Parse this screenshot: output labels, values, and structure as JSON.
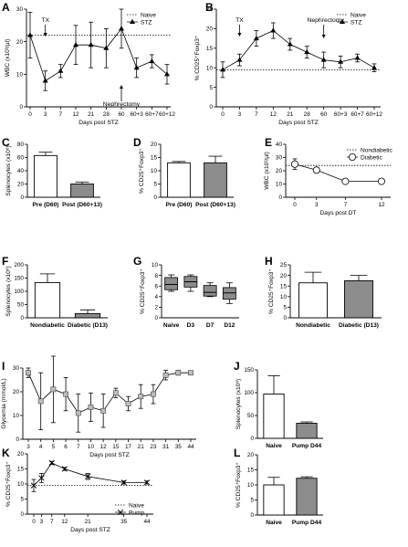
{
  "figure_labels": {
    "A": "A",
    "B": "B",
    "C": "C",
    "D": "D",
    "E": "E",
    "F": "F",
    "G": "G",
    "H": "H",
    "I": "I",
    "J": "J",
    "K": "K",
    "L": "L"
  },
  "chart_data": [
    {
      "id": "A",
      "type": "line",
      "x": [
        "0",
        "3",
        "7",
        "12",
        "21",
        "28",
        "60",
        "60+3",
        "60+7",
        "60+12"
      ],
      "series": [
        {
          "name": "STZ",
          "values": [
            22,
            8,
            11,
            19,
            19,
            18,
            24,
            12,
            14,
            10
          ],
          "err": [
            7,
            3,
            2,
            6,
            7,
            6,
            6,
            3,
            2,
            3
          ]
        }
      ],
      "reference": {
        "name": "Naive",
        "value": 22
      },
      "ylim": [
        0,
        30
      ],
      "yticks": [
        0,
        10,
        20,
        30
      ],
      "ylabel": "WBC (x10³/µl)",
      "xlabel": "Days post STZ",
      "annotations": [
        {
          "text": "TX",
          "x": "3"
        },
        {
          "text": "Nephrectomy",
          "x": "60"
        }
      ],
      "legend": "top-right"
    },
    {
      "id": "B",
      "type": "line",
      "x": [
        "0",
        "3",
        "7",
        "12",
        "21",
        "28",
        "60",
        "60+3",
        "60+7",
        "60+12"
      ],
      "series": [
        {
          "name": "STZ",
          "values": [
            9.5,
            12,
            17.5,
            19.5,
            16,
            14,
            12,
            11.5,
            12.5,
            10
          ],
          "err": [
            2,
            1.5,
            2,
            2,
            1.5,
            1.5,
            2,
            1.5,
            1,
            1
          ]
        }
      ],
      "reference": {
        "name": "Naive",
        "value": 9.5
      },
      "ylim": [
        0,
        25
      ],
      "yticks": [
        0,
        5,
        10,
        15,
        20,
        25
      ],
      "ylabel": "% CD25⁺Foxp3⁺",
      "xlabel": "Days post  STZ",
      "annotations": [
        {
          "text": "TX",
          "x": "3"
        },
        {
          "text": "Nephrectomy",
          "x": "60"
        }
      ],
      "legend": "top-right"
    },
    {
      "id": "C",
      "type": "bar",
      "categories": [
        "Pre (D60)",
        "Post (D60+13)"
      ],
      "values": [
        63,
        20
      ],
      "err": [
        5,
        3
      ],
      "colors": [
        "#ffffff",
        "#8c8c8c"
      ],
      "ylim": [
        0,
        80
      ],
      "yticks": [
        0,
        20,
        40,
        60,
        80
      ],
      "ylabel": "Splenocytes (x10⁶)"
    },
    {
      "id": "D",
      "type": "bar",
      "categories": [
        "Pre (D60)",
        "Post (D60+13)"
      ],
      "values": [
        13,
        13
      ],
      "err": [
        0.5,
        2.5
      ],
      "colors": [
        "#ffffff",
        "#8c8c8c"
      ],
      "ylim": [
        0,
        20
      ],
      "yticks": [
        0,
        5,
        10,
        15,
        20
      ],
      "ylabel": "% CD25⁺Foxp3⁺"
    },
    {
      "id": "E",
      "type": "line",
      "x": [
        0,
        3,
        7,
        12
      ],
      "series": [
        {
          "name": "Diabetic",
          "values": [
            25,
            20.5,
            12,
            12
          ],
          "err": [
            4,
            2,
            2,
            2
          ]
        }
      ],
      "reference": {
        "name": "Nondiabetic",
        "value": 24
      },
      "ylim": [
        0,
        40
      ],
      "yticks": [
        0,
        10,
        20,
        30,
        40
      ],
      "ylabel": "WBC (x10³/µl)",
      "xlabel": "Days post DT",
      "legend": "top-right"
    },
    {
      "id": "F",
      "type": "bar",
      "categories": [
        "Nondiabetic",
        "Diabetic (D13)"
      ],
      "values": [
        133,
        16
      ],
      "err": [
        33,
        14
      ],
      "colors": [
        "#ffffff",
        "#8c8c8c"
      ],
      "ylim": [
        0,
        200
      ],
      "yticks": [
        0,
        50,
        100,
        150,
        200
      ],
      "ylabel": "Splenocytes (x10⁶)"
    },
    {
      "id": "G",
      "type": "box",
      "categories": [
        "Naive",
        "D3",
        "D7",
        "D12"
      ],
      "boxes": [
        {
          "min": 5,
          "q1": 5.3,
          "median": 6.3,
          "q3": 7.6,
          "max": 8.1
        },
        {
          "min": 5,
          "q1": 5.8,
          "median": 6.8,
          "q3": 7.8,
          "max": 8.1
        },
        {
          "min": 4,
          "q1": 4.1,
          "median": 4.8,
          "q3": 6.1,
          "max": 6.6
        },
        {
          "min": 2.7,
          "q1": 3.5,
          "median": 4.7,
          "q3": 5.7,
          "max": 6.6
        }
      ],
      "ylim": [
        0,
        10
      ],
      "yticks": [
        0,
        2,
        4,
        6,
        8,
        10
      ],
      "ylabel": "% CD25⁺Foxp3⁺"
    },
    {
      "id": "H",
      "type": "bar",
      "categories": [
        "Nondiabetic",
        "Diabetic (D13)"
      ],
      "values": [
        16.5,
        17.5
      ],
      "err": [
        5,
        2.5
      ],
      "colors": [
        "#ffffff",
        "#8c8c8c"
      ],
      "ylim": [
        0,
        25
      ],
      "yticks": [
        0,
        5,
        10,
        15,
        20,
        25
      ],
      "ylabel": "% CD25⁺Foxp3⁺"
    },
    {
      "id": "I",
      "type": "line",
      "x": [
        "3",
        "4",
        "5",
        "6",
        "7",
        "10",
        "12",
        "15",
        "17",
        "21",
        "23",
        "31",
        "35",
        "44"
      ],
      "series": [
        {
          "name": "Pump",
          "values": [
            28,
            16,
            21,
            19,
            11,
            13.5,
            12,
            19.5,
            15,
            18,
            19,
            27,
            28,
            28
          ],
          "err": [
            2,
            12,
            14,
            7,
            8,
            6,
            7,
            2,
            3,
            5,
            4,
            2,
            1,
            0.5
          ]
        }
      ],
      "ylim": [
        0,
        30
      ],
      "yticks": [
        0,
        10,
        20,
        30
      ],
      "ylabel": "Glycemia (mmol/L)",
      "xlabel": "Days post STZ"
    },
    {
      "id": "J",
      "type": "bar",
      "categories": [
        "Naive",
        "Pump D44"
      ],
      "values": [
        97,
        33
      ],
      "err": [
        40,
        3
      ],
      "colors": [
        "#ffffff",
        "#8c8c8c"
      ],
      "ylim": [
        0,
        150
      ],
      "yticks": [
        0,
        50,
        100,
        150
      ],
      "ylabel": "Splenocytes (x10⁶)"
    },
    {
      "id": "K",
      "type": "line",
      "x": [
        0,
        3,
        7,
        12,
        21,
        35,
        44
      ],
      "series": [
        {
          "name": "Pump",
          "values": [
            9.5,
            12,
            17,
            15,
            12.5,
            10.5,
            10.5
          ],
          "err": [
            2,
            1.5,
            0.5,
            0.5,
            1,
            0.5,
            0.5
          ]
        }
      ],
      "reference": {
        "name": "Naive",
        "value": 9.5
      },
      "ylim": [
        0,
        20
      ],
      "yticks": [
        0,
        5,
        10,
        15,
        20
      ],
      "ylabel": "% CD25⁺Foxp3⁺",
      "xlabel": "Days post STZ",
      "legend": "bottom-right"
    },
    {
      "id": "L",
      "type": "bar",
      "categories": [
        "Naive",
        "Pump D44"
      ],
      "values": [
        10,
        12.2
      ],
      "err": [
        2.5,
        0.5
      ],
      "colors": [
        "#ffffff",
        "#8c8c8c"
      ],
      "ylim": [
        0,
        20
      ],
      "yticks": [
        0,
        5,
        10,
        15,
        20
      ],
      "ylabel": "% CD25⁺Foxp3⁺"
    }
  ]
}
